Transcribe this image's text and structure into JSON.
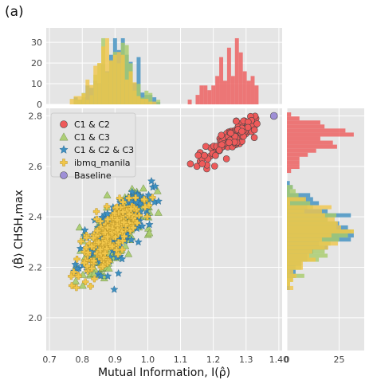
{
  "panel_label": "(a)",
  "chart_data": {
    "type": "scatter",
    "xlabel": "Mutual Information, I(ρ̂)",
    "ylabel": "⟨B̂⟩ CHSH,max",
    "xlim": [
      0.69,
      1.41
    ],
    "ylim": [
      1.87,
      2.83
    ],
    "xticks": [
      "0.7",
      "0.8",
      "0.9",
      "1.0",
      "1.1",
      "1.2",
      "1.3",
      "1.40"
    ],
    "yticks": [
      "2.0",
      "2.2",
      "2.4",
      "2.6",
      "2.8"
    ],
    "grid": true,
    "legend_position": "upper-left",
    "series": [
      {
        "name": "C1 & C2",
        "marker": "circle",
        "color": "#ee5a5a",
        "x_range": [
          1.12,
          1.34
        ],
        "y_range": [
          2.58,
          2.8
        ],
        "points": [
          [
            1.13,
            2.61
          ],
          [
            1.16,
            2.62
          ],
          [
            1.19,
            2.64
          ],
          [
            1.21,
            2.66
          ],
          [
            1.23,
            2.68
          ],
          [
            1.25,
            2.7
          ],
          [
            1.27,
            2.72
          ],
          [
            1.29,
            2.75
          ],
          [
            1.31,
            2.77
          ],
          [
            1.33,
            2.79
          ],
          [
            1.22,
            2.71
          ],
          [
            1.26,
            2.74
          ],
          [
            1.3,
            2.73
          ],
          [
            1.18,
            2.59
          ],
          [
            1.24,
            2.63
          ],
          [
            1.28,
            2.69
          ],
          [
            1.32,
            2.76
          ],
          [
            1.2,
            2.67
          ],
          [
            1.27,
            2.78
          ],
          [
            1.15,
            2.6
          ]
        ]
      },
      {
        "name": "C1 & C3",
        "marker": "triangle",
        "color": "#a8cc6a",
        "x_range": [
          0.74,
          1.05
        ],
        "y_range": [
          2.04,
          2.52
        ]
      },
      {
        "name": "C1 & C2 & C3",
        "marker": "star",
        "color": "#3d8fc0",
        "x_range": [
          0.74,
          1.06
        ],
        "y_range": [
          2.08,
          2.55
        ]
      },
      {
        "name": "ibmq_manila",
        "marker": "plus",
        "color": "#f1c64a",
        "x_range": [
          0.72,
          1.02
        ],
        "y_range": [
          2.0,
          2.48
        ]
      },
      {
        "name": "Baseline",
        "marker": "circle",
        "color": "#9e8fd6",
        "points": [
          [
            1.385,
            2.8
          ]
        ]
      }
    ],
    "top_histogram": {
      "yticks": [
        "0",
        "10",
        "20",
        "30"
      ],
      "ylim": [
        0,
        37
      ]
    },
    "right_histogram": {
      "xticks": [
        "0",
        "25"
      ],
      "xlim": [
        0,
        37
      ]
    }
  }
}
